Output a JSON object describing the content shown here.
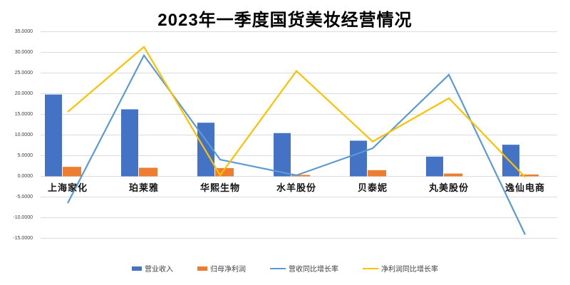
{
  "title": "2023年一季度国货美妆经营情况",
  "colors": {
    "revenue_bar": "#4472C4",
    "profit_bar": "#ED7D31",
    "revenue_growth_line": "#5B9BD5",
    "profit_growth_line": "#FFC000",
    "gridline": "#DCDCDC",
    "axis_text": "#404040",
    "category_text": "#141414",
    "title_text": "#000000",
    "background": "#FFFFFF"
  },
  "chart_data": {
    "type": "combo bar+line",
    "categories": [
      "上海家化",
      "珀莱雅",
      "华熙生物",
      "水羊股份",
      "贝泰妮",
      "丸美股份",
      "逸仙电商"
    ],
    "series": [
      {
        "name": "营业收入",
        "type": "bar",
        "color_key": "revenue_bar",
        "values": [
          19.8,
          16.22,
          12.98,
          10.47,
          8.63,
          4.77,
          7.65
        ]
      },
      {
        "name": "归母净利润",
        "type": "bar",
        "color_key": "profit_bar",
        "values": [
          2.3,
          2.08,
          2.0,
          0.35,
          1.5,
          0.68,
          0.45
        ]
      },
      {
        "name": "营收同比增长率",
        "type": "line",
        "color_key": "revenue_growth_line",
        "values": [
          -6.49,
          29.27,
          4.04,
          0.26,
          6.78,
          24.6,
          -14.1
        ]
      },
      {
        "name": "净利润同比增长率",
        "type": "line",
        "color_key": "profit_growth_line",
        "values": [
          15.59,
          31.32,
          0.28,
          25.5,
          8.41,
          18.9,
          -0.2
        ]
      }
    ],
    "ylim": [
      -15,
      35
    ],
    "ytick_step": 5,
    "ytick_labels": [
      "35.0000",
      "30.0000",
      "25.0000",
      "20.0000",
      "15.0000",
      "10.0000",
      "5.0000",
      "0.0000",
      "-5.0000",
      "-10.0000",
      "-15.0000"
    ],
    "grid": "horizontal gridlines only, no plot border",
    "legend_position": "bottom center"
  }
}
